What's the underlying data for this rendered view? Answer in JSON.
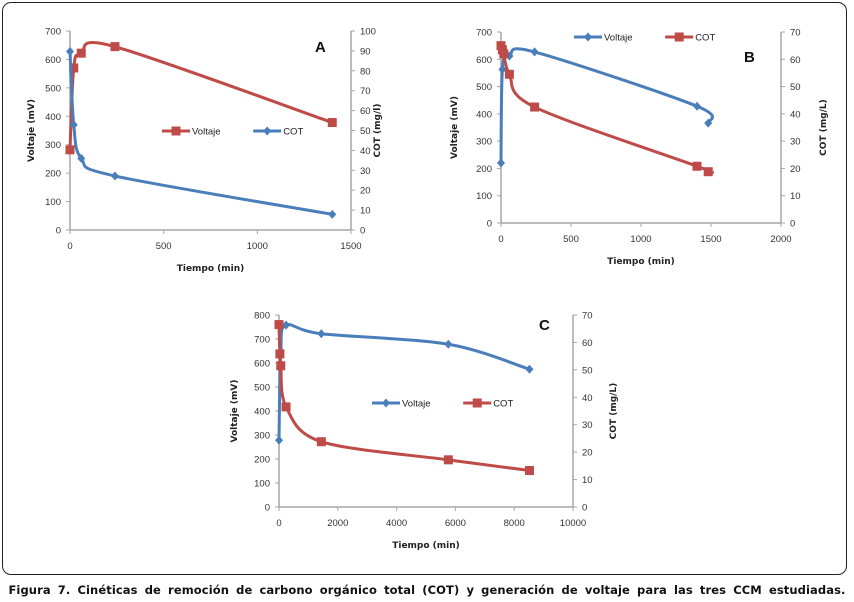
{
  "figure": {
    "caption": "Figura 7. Cinéticas de remoción de carbono orgánico total (COT) y generación de voltaje para las tres CCM estudiadas.",
    "colors": {
      "blue": "#4a7ebb",
      "red": "#be4b48",
      "axis": "#a6a6a6"
    }
  },
  "chart_data": [
    {
      "panel": "A",
      "type": "line",
      "xlabel": "Tiempo (min)",
      "ylabel": "Voltaje (mV)",
      "y2label": "COT (mg/l)",
      "xlim": [
        0,
        1500
      ],
      "ylim": [
        0,
        700
      ],
      "y2lim": [
        0,
        100
      ],
      "xticks": [
        0,
        500,
        1000,
        1500
      ],
      "yticks": [
        0,
        100,
        200,
        300,
        400,
        500,
        600,
        700
      ],
      "y2ticks": [
        0,
        10,
        20,
        30,
        40,
        50,
        60,
        70,
        80,
        90,
        100
      ],
      "legend_position": "center",
      "series": [
        {
          "name": "Voltaje",
          "color": "#be4b48",
          "marker": "square",
          "axis": "left",
          "x": [
            0,
            20,
            60,
            240,
            1400
          ],
          "y": [
            282,
            570,
            622,
            645,
            378
          ]
        },
        {
          "name": "COT",
          "color": "#4a7ebb",
          "marker": "diamond",
          "axis": "left",
          "x": [
            0,
            20,
            60,
            240,
            1400
          ],
          "y": [
            628,
            370,
            252,
            190,
            55
          ]
        }
      ]
    },
    {
      "panel": "B",
      "type": "line",
      "xlabel": "Tiempo (min)",
      "ylabel": "Voltaje (mV)",
      "y2label": "COT (mg/L)",
      "xlim": [
        0,
        2000
      ],
      "ylim": [
        0,
        700
      ],
      "y2lim": [
        0,
        70
      ],
      "xticks": [
        0,
        500,
        1000,
        1500,
        2000
      ],
      "yticks": [
        0,
        100,
        200,
        300,
        400,
        500,
        600,
        700
      ],
      "y2ticks": [
        0,
        10,
        20,
        30,
        40,
        50,
        60,
        70
      ],
      "legend_position": "top-center",
      "series": [
        {
          "name": "Voltaje",
          "color": "#4a7ebb",
          "marker": "diamond",
          "axis": "left",
          "x": [
            0,
            10,
            60,
            240,
            1400,
            1480
          ],
          "y": [
            220,
            563,
            612,
            627,
            428,
            366
          ]
        },
        {
          "name": "COT",
          "color": "#be4b48",
          "marker": "square",
          "axis": "right",
          "x": [
            0,
            10,
            20,
            60,
            240,
            1400,
            1480
          ],
          "y": [
            65,
            63.5,
            62,
            54.5,
            42.5,
            20.8,
            18.8
          ]
        }
      ]
    },
    {
      "panel": "C",
      "type": "line",
      "xlabel": "Tiempo (min)",
      "ylabel": "Voltaje (mV)",
      "y2label": "COT (mg/L)",
      "xlim": [
        0,
        10000
      ],
      "ylim": [
        0,
        800
      ],
      "y2lim": [
        0,
        70
      ],
      "xticks": [
        0,
        2000,
        4000,
        6000,
        8000,
        10000
      ],
      "yticks": [
        0,
        100,
        200,
        300,
        400,
        500,
        600,
        700,
        800
      ],
      "y2ticks": [
        0,
        10,
        20,
        30,
        40,
        50,
        60,
        70
      ],
      "legend_position": "center",
      "series": [
        {
          "name": "Voltaje",
          "color": "#4a7ebb",
          "marker": "diamond",
          "axis": "left",
          "x": [
            0,
            60,
            240,
            1440,
            5760,
            8520
          ],
          "y": [
            278,
            650,
            758,
            722,
            678,
            574
          ]
        },
        {
          "name": "COT",
          "color": "#be4b48",
          "marker": "square",
          "axis": "right",
          "x": [
            0,
            30,
            60,
            240,
            1440,
            5760,
            8520
          ],
          "y": [
            66.5,
            55.8,
            51.5,
            36.5,
            23.8,
            17.2,
            13.3
          ]
        }
      ]
    }
  ]
}
